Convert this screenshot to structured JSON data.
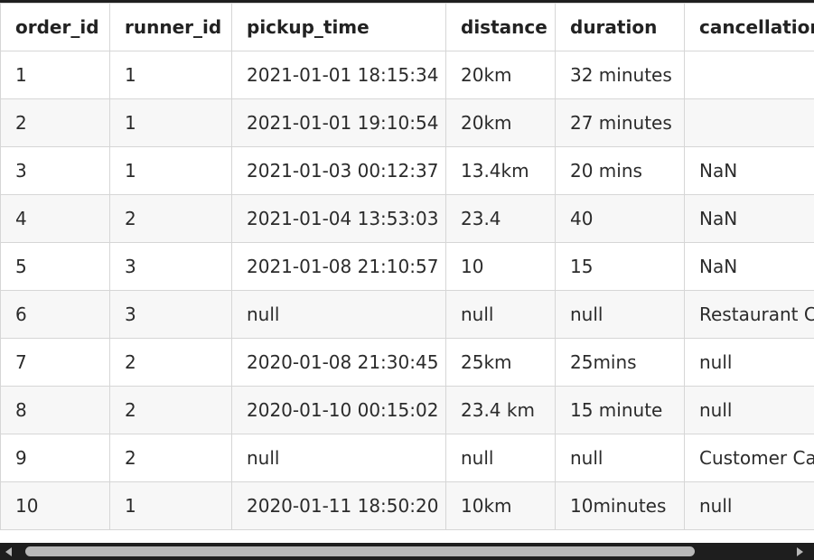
{
  "table": {
    "columns": [
      "order_id",
      "runner_id",
      "pickup_time",
      "distance",
      "duration",
      "cancellation"
    ],
    "rows": [
      [
        "1",
        "1",
        "2021-01-01 18:15:34",
        "20km",
        "32 minutes",
        ""
      ],
      [
        "2",
        "1",
        "2021-01-01 19:10:54",
        "20km",
        "27 minutes",
        ""
      ],
      [
        "3",
        "1",
        "2021-01-03 00:12:37",
        "13.4km",
        "20 mins",
        "NaN"
      ],
      [
        "4",
        "2",
        "2021-01-04 13:53:03",
        "23.4",
        "40",
        "NaN"
      ],
      [
        "5",
        "3",
        "2021-01-08 21:10:57",
        "10",
        "15",
        "NaN"
      ],
      [
        "6",
        "3",
        "null",
        "null",
        "null",
        "Restaurant Cancellation"
      ],
      [
        "7",
        "2",
        "2020-01-08 21:30:45",
        "25km",
        "25mins",
        "null"
      ],
      [
        "8",
        "2",
        "2020-01-10 00:15:02",
        "23.4 km",
        "15 minute",
        "null"
      ],
      [
        "9",
        "2",
        "null",
        "null",
        "null",
        "Customer Cancellation"
      ],
      [
        "10",
        "1",
        "2020-01-11 18:50:20",
        "10km",
        "10minutes",
        "null"
      ]
    ]
  },
  "scrollbar": {
    "left_icon": "scroll-left-arrow-icon",
    "right_icon": "scroll-right-arrow-icon"
  }
}
